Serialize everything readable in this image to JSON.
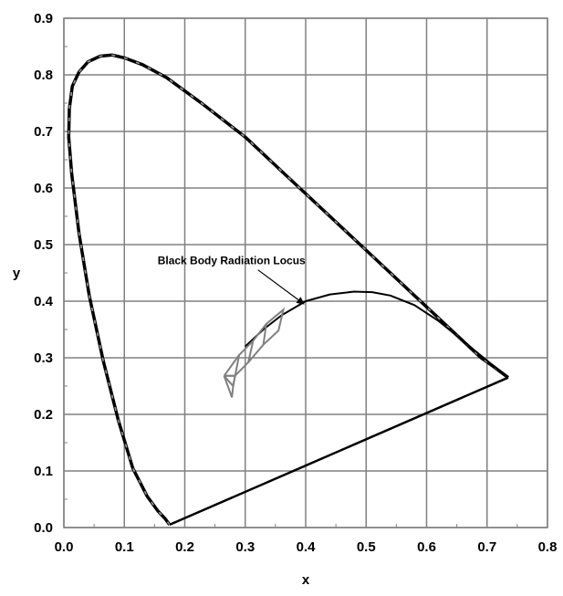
{
  "chart_data": {
    "type": "line",
    "title": "",
    "xlabel": "x",
    "ylabel": "y",
    "xlim": [
      0.0,
      0.8
    ],
    "ylim": [
      0.0,
      0.9
    ],
    "x_ticks": [
      "0.0",
      "0.1",
      "0.2",
      "0.3",
      "0.4",
      "0.5",
      "0.6",
      "0.7",
      "0.8"
    ],
    "y_ticks": [
      "0.0",
      "0.1",
      "0.2",
      "0.3",
      "0.4",
      "0.5",
      "0.6",
      "0.7",
      "0.8",
      "0.9"
    ],
    "grid": true,
    "legend": "none",
    "colors": {
      "locus": "#000000",
      "locus_dashes": "#9a9a9a",
      "quadrangles": "#808080",
      "grid": "#808080"
    },
    "series": [
      {
        "key": "spectrum-locus",
        "x": [
          0.175,
          0.168,
          0.155,
          0.138,
          0.114,
          0.09,
          0.065,
          0.042,
          0.025,
          0.013,
          0.008,
          0.009,
          0.014,
          0.025,
          0.04,
          0.06,
          0.08,
          0.1,
          0.13,
          0.17,
          0.23,
          0.3,
          0.37,
          0.44,
          0.51,
          0.58,
          0.64,
          0.69,
          0.71,
          0.735
        ],
        "y": [
          0.005,
          0.015,
          0.03,
          0.055,
          0.105,
          0.19,
          0.295,
          0.41,
          0.52,
          0.625,
          0.69,
          0.74,
          0.78,
          0.805,
          0.823,
          0.833,
          0.835,
          0.83,
          0.818,
          0.795,
          0.748,
          0.69,
          0.62,
          0.55,
          0.48,
          0.41,
          0.35,
          0.3,
          0.285,
          0.265
        ]
      },
      {
        "key": "purple-line",
        "x": [
          0.175,
          0.735
        ],
        "y": [
          0.005,
          0.265
        ]
      },
      {
        "key": "black-body-locus",
        "x": [
          0.3,
          0.33,
          0.36,
          0.4,
          0.44,
          0.48,
          0.51,
          0.54,
          0.58,
          0.62,
          0.66,
          0.7,
          0.735
        ],
        "y": [
          0.32,
          0.35,
          0.375,
          0.4,
          0.412,
          0.417,
          0.416,
          0.41,
          0.393,
          0.365,
          0.33,
          0.295,
          0.265
        ]
      },
      {
        "key": "quadrangle-outer",
        "x": [
          0.265,
          0.29,
          0.313,
          0.335,
          0.363,
          0.355,
          0.33,
          0.305,
          0.283,
          0.265
        ],
        "y": [
          0.268,
          0.305,
          0.33,
          0.36,
          0.385,
          0.348,
          0.323,
          0.292,
          0.268,
          0.268
        ]
      },
      {
        "key": "quadrangle-bottom-left",
        "x": [
          0.265,
          0.283,
          0.28,
          0.265
        ],
        "y": [
          0.268,
          0.268,
          0.25,
          0.268
        ]
      },
      {
        "key": "quadrangle-divider-1",
        "x": [
          0.29,
          0.28
        ],
        "y": [
          0.305,
          0.25
        ]
      },
      {
        "key": "quadrangle-divider-2",
        "x": [
          0.313,
          0.305
        ],
        "y": [
          0.33,
          0.292
        ]
      },
      {
        "key": "quadrangle-divider-3",
        "x": [
          0.335,
          0.33
        ],
        "y": [
          0.36,
          0.323
        ]
      },
      {
        "key": "quadrangle-corner",
        "x": [
          0.265,
          0.278,
          0.28
        ],
        "y": [
          0.268,
          0.23,
          0.25
        ]
      }
    ],
    "annotations": [
      {
        "text": "Black Body Radiation Locus",
        "x": 0.155,
        "y": 0.465,
        "arrow_to": [
          0.4,
          0.4
        ]
      }
    ]
  }
}
